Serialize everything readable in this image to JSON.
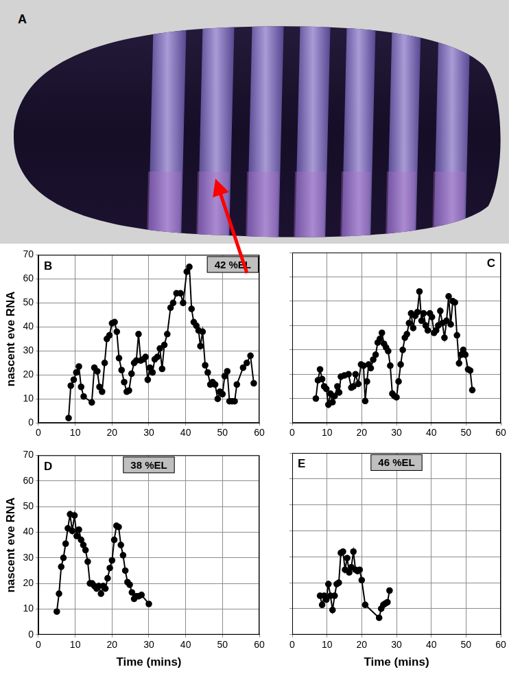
{
  "image": {
    "label": "A"
  },
  "chart_data": [
    {
      "type": "line",
      "title": "B",
      "annotation": "42 %EL",
      "y_label": "nascent eve RNA",
      "x": [
        8.2,
        8.8,
        9.6,
        10.3,
        11,
        11.6,
        12.3,
        14.5,
        15.2,
        16,
        16.6,
        17.3,
        18,
        18.6,
        19.3,
        20,
        20.7,
        21.3,
        21.9,
        22.6,
        23.3,
        24,
        24.6,
        25.3,
        26,
        26.6,
        27.2,
        27.8,
        28.5,
        29.1,
        29.7,
        30.3,
        31,
        31.6,
        32.3,
        33,
        33.6,
        34.2,
        35,
        35.9,
        36.6,
        37.5,
        38.6,
        39.3,
        40.3,
        41,
        41.6,
        42.2,
        42.9,
        43.5,
        44,
        44.6,
        45.3,
        46,
        46.7,
        47.3,
        48,
        48.7,
        49.3,
        50,
        50.6,
        51.3,
        51.9,
        52.6,
        53.3,
        53.9,
        55.6,
        56.6,
        57.6,
        58.5
      ],
      "values": [
        2,
        15.5,
        18,
        21,
        23.5,
        15,
        11,
        8.5,
        23,
        21.5,
        15,
        13,
        25,
        35,
        36.5,
        41.5,
        42,
        38,
        27,
        22,
        17,
        13,
        13.5,
        20.5,
        25,
        26,
        37,
        26,
        26.5,
        27.5,
        18,
        23,
        21,
        26.5,
        27.5,
        31,
        22.5,
        32.5,
        37,
        48,
        50,
        54,
        54,
        50,
        63,
        65,
        47.5,
        42,
        40.5,
        38.5,
        32,
        38,
        24,
        21,
        16,
        17,
        16,
        10,
        13,
        12,
        19.5,
        21.5,
        9,
        9,
        9,
        16,
        23,
        25,
        28,
        16.5
      ],
      "color": "#000000",
      "marker": "circle",
      "line_style": "solid",
      "grid": true,
      "tick_labels": true,
      "xlim": [
        0,
        60
      ],
      "xticks": [
        0,
        10,
        20,
        30,
        40,
        50,
        60
      ],
      "ylim": [
        0,
        70
      ],
      "yticks": [
        0,
        10,
        20,
        30,
        40,
        50,
        60,
        70
      ]
    },
    {
      "type": "line",
      "title": "C",
      "x": [
        6.8,
        7.4,
        8,
        8.6,
        9.2,
        9.8,
        10.4,
        11,
        11.6,
        12.2,
        13,
        13.5,
        14,
        15,
        16.2,
        17,
        17.6,
        18.2,
        19,
        19.8,
        20.5,
        21,
        21.5,
        22,
        22.6,
        23.3,
        24,
        24.6,
        25.2,
        25.8,
        26.4,
        27,
        27.6,
        28.2,
        28.8,
        29.4,
        30,
        30.6,
        31.2,
        31.8,
        32.4,
        33,
        33.6,
        34.2,
        34.8,
        35.4,
        36,
        36.6,
        37.2,
        37.8,
        38.4,
        39,
        39.6,
        40.2,
        40.8,
        41.4,
        42,
        42.6,
        43.2,
        43.8,
        44.4,
        45,
        45.6,
        46.2,
        46.8,
        47.4,
        48,
        48.6,
        49.2,
        49.8,
        50.6,
        51.2,
        51.8
      ],
      "values": [
        10,
        17.5,
        22,
        18,
        15,
        14,
        7.5,
        12,
        8.5,
        11,
        15,
        12.5,
        19,
        19.5,
        20,
        14.5,
        15,
        20,
        16,
        24,
        23.5,
        9,
        17,
        24,
        22.5,
        26,
        28,
        33,
        34.5,
        37,
        32.5,
        31,
        29.5,
        23.5,
        12,
        11,
        10.5,
        17,
        24,
        30,
        35,
        36.5,
        41,
        45,
        39,
        44,
        45.5,
        54,
        42,
        45,
        40,
        38,
        45,
        43.5,
        37,
        38,
        40,
        46,
        41,
        35,
        42,
        52,
        40.5,
        50,
        49.5,
        36,
        24.5,
        28,
        30,
        28,
        22,
        21.5,
        13.5
      ],
      "color": "#000000",
      "marker": "circle",
      "line_style": "solid",
      "grid": true,
      "tick_labels": "x",
      "xlim": [
        0,
        60
      ],
      "xticks": [
        0,
        10,
        20,
        30,
        40,
        50,
        60
      ],
      "ylim": [
        0,
        70
      ],
      "yticks": [
        0,
        10,
        20,
        30,
        40,
        50,
        60,
        70
      ]
    },
    {
      "type": "line",
      "title": "D",
      "annotation": "38 %EL",
      "y_label": "nascent eve RNA",
      "x_label": "Time (mins)",
      "x": [
        5,
        5.6,
        6.2,
        6.8,
        7.4,
        8,
        8.6,
        9.2,
        9.8,
        10.4,
        11,
        11.6,
        12.2,
        12.8,
        13.4,
        14,
        14.6,
        15.2,
        15.8,
        16.4,
        17,
        17.6,
        18.2,
        18.8,
        19.4,
        20,
        20.6,
        21.2,
        21.8,
        22.4,
        23,
        23.6,
        24.2,
        24.8,
        25.4,
        26,
        26.6,
        27.2,
        28,
        30
      ],
      "values": [
        9,
        16,
        26.5,
        30,
        35.5,
        41.5,
        47,
        40.5,
        46.5,
        38.5,
        41,
        37,
        35,
        33,
        28.5,
        20,
        20,
        19,
        18,
        19,
        16,
        19,
        18,
        22,
        26,
        29,
        37,
        42.5,
        42,
        35,
        31,
        25,
        20.5,
        19.5,
        16.5,
        14,
        15,
        15,
        15.5,
        12
      ],
      "color": "#000000",
      "marker": "circle",
      "line_style": "solid",
      "grid": true,
      "tick_labels": true,
      "xlim": [
        0,
        60
      ],
      "xticks": [
        0,
        10,
        20,
        30,
        40,
        50,
        60
      ],
      "ylim": [
        0,
        70
      ],
      "yticks": [
        0,
        10,
        20,
        30,
        40,
        50,
        60,
        70
      ]
    },
    {
      "type": "line",
      "title": "E",
      "annotation": "46 %EL",
      "x_label": "Time (mins)",
      "x": [
        8,
        8.6,
        9.2,
        9.8,
        10.4,
        11,
        11.6,
        12.2,
        12.8,
        13.4,
        14,
        14.6,
        15.2,
        15.8,
        16.4,
        17,
        17.6,
        18.2,
        18.8,
        19.4,
        20,
        21,
        25,
        25.6,
        26.2,
        26.8,
        27.4,
        28
      ],
      "values": [
        15,
        11.5,
        15,
        13.5,
        19.5,
        15,
        9.5,
        15,
        19.5,
        20,
        31.5,
        32,
        25,
        29.5,
        24,
        26,
        32,
        25,
        24.5,
        25,
        21,
        11.5,
        6.5,
        10,
        11.5,
        12,
        12.5,
        17
      ],
      "color": "#000000",
      "marker": "circle",
      "line_style": "solid",
      "grid": true,
      "tick_labels": "x",
      "xlim": [
        0,
        60
      ],
      "xticks": [
        0,
        10,
        20,
        30,
        40,
        50,
        60
      ],
      "ylim": [
        0,
        70
      ],
      "yticks": [
        0,
        10,
        20,
        30,
        40,
        50,
        60,
        70
      ]
    }
  ]
}
